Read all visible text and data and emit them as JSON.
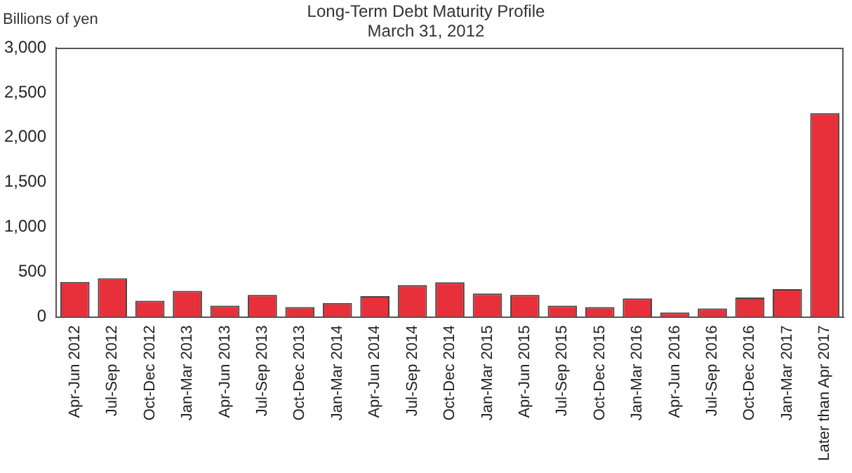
{
  "chart_data": {
    "type": "bar",
    "title": "Long-Term Debt Maturity Profile",
    "subtitle": "March 31, 2012",
    "ylabel": "Billions of yen",
    "categories": [
      "Apr-Jun 2012",
      "Jul-Sep 2012",
      "Oct-Dec 2012",
      "Jan-Mar 2013",
      "Apr-Jun 2013",
      "Jul-Sep 2013",
      "Oct-Dec 2013",
      "Jan-Mar 2014",
      "Apr-Jun 2014",
      "Jul-Sep 2014",
      "Oct-Dec 2014",
      "Jan-Mar 2015",
      "Apr-Jun 2015",
      "Jul-Sep 2015",
      "Oct-Dec 2015",
      "Jan-Mar 2016",
      "Apr-Jun 2016",
      "Jul-Sep 2016",
      "Oct-Dec 2016",
      "Jan-Mar 2017",
      "Later than Apr 2017"
    ],
    "values": [
      390,
      430,
      180,
      290,
      125,
      245,
      110,
      155,
      230,
      355,
      385,
      260,
      245,
      125,
      110,
      205,
      50,
      95,
      215,
      310,
      2270
    ],
    "color": "#e8303a",
    "ylim": [
      0,
      3000
    ],
    "yticks": [
      {
        "value": 0,
        "label": "0"
      },
      {
        "value": 500,
        "label": "500"
      },
      {
        "value": 1000,
        "label": "1,000"
      },
      {
        "value": 1500,
        "label": "1,500"
      },
      {
        "value": 2000,
        "label": "2,000"
      },
      {
        "value": 2500,
        "label": "2,500"
      },
      {
        "value": 3000,
        "label": "3,000"
      }
    ],
    "grid": false,
    "legend": false
  }
}
